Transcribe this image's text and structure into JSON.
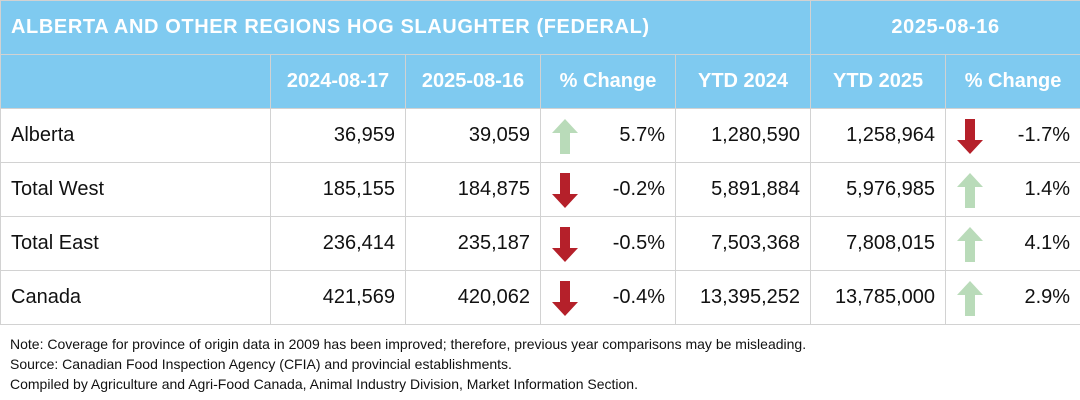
{
  "title": "ALBERTA AND OTHER REGIONS HOG SLAUGHTER (FEDERAL)",
  "title_date": "2025-08-16",
  "headers": [
    "2024-08-17",
    "2025-08-16",
    "% Change",
    "YTD 2024",
    "YTD 2025",
    "% Change"
  ],
  "colors": {
    "header_bg": "#7fcaf0",
    "up_arrow": "#b9dbb9",
    "down_arrow": "#b5202a"
  },
  "rows": [
    {
      "region": "Alberta",
      "week_2024": "36,959",
      "week_2025": "39,059",
      "week_change": "5.7%",
      "week_trend": "up",
      "ytd_2024": "1,280,590",
      "ytd_2025": "1,258,964",
      "ytd_change": "-1.7%",
      "ytd_trend": "down"
    },
    {
      "region": "Total West",
      "week_2024": "185,155",
      "week_2025": "184,875",
      "week_change": "-0.2%",
      "week_trend": "down",
      "ytd_2024": "5,891,884",
      "ytd_2025": "5,976,985",
      "ytd_change": "1.4%",
      "ytd_trend": "up"
    },
    {
      "region": "Total East",
      "week_2024": "236,414",
      "week_2025": "235,187",
      "week_change": "-0.5%",
      "week_trend": "down",
      "ytd_2024": "7,503,368",
      "ytd_2025": "7,808,015",
      "ytd_change": "4.1%",
      "ytd_trend": "up"
    },
    {
      "region": "Canada",
      "week_2024": "421,569",
      "week_2025": "420,062",
      "week_change": "-0.4%",
      "week_trend": "down",
      "ytd_2024": "13,395,252",
      "ytd_2025": "13,785,000",
      "ytd_change": "2.9%",
      "ytd_trend": "up"
    }
  ],
  "notes": [
    "Note: Coverage for province of origin data in 2009 has been improved; therefore, previous year comparisons may be misleading.",
    "Source: Canadian Food Inspection Agency (CFIA) and provincial establishments.",
    "Compiled by Agriculture and Agri-Food Canada, Animal Industry Division, Market Information Section."
  ]
}
